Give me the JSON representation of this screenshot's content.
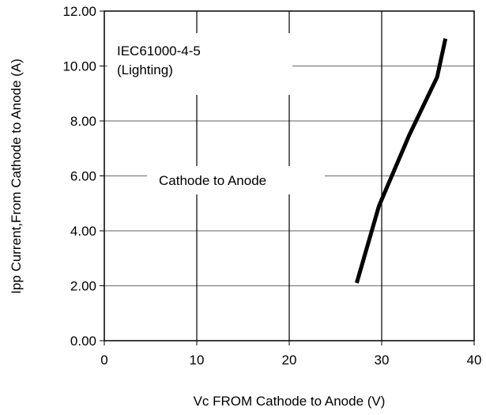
{
  "chart_data": {
    "type": "line",
    "title": "",
    "xlabel": "Vc FROM Cathode to Anode (V)",
    "ylabel": "Ipp Current,From Cathode to Anode (A)",
    "xlim": [
      0,
      40
    ],
    "ylim": [
      0,
      12
    ],
    "x_ticks": [
      0,
      10,
      20,
      30,
      40
    ],
    "x_tick_labels": [
      "0",
      "10",
      "20",
      "30",
      "40"
    ],
    "y_ticks": [
      0,
      2,
      4,
      6,
      8,
      10,
      12
    ],
    "y_tick_labels": [
      "0.00",
      "2.00",
      "4.00",
      "6.00",
      "8.00",
      "10.00",
      "12.00"
    ],
    "grid": true,
    "legend": "none",
    "series": [
      {
        "color": "#000000",
        "x": [
          27.3,
          29.7,
          33.0,
          36.0,
          36.9
        ],
        "y": [
          2.1,
          4.9,
          7.5,
          9.6,
          11.0
        ]
      }
    ],
    "annotations": [
      {
        "text": "IEC61000-4-5"
      },
      {
        "text": "(Lighting)"
      },
      {
        "text": "Cathode to Anode"
      }
    ]
  }
}
